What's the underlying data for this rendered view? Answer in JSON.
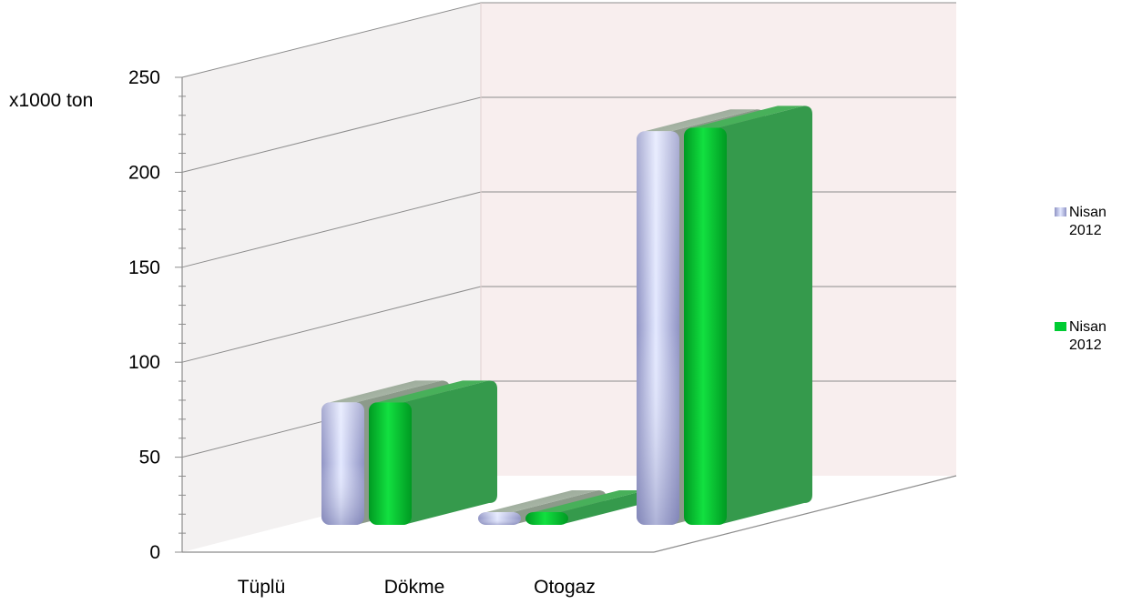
{
  "chart_data": {
    "type": "bar",
    "ylabel": "x1000 ton",
    "categories": [
      "Tüplü",
      "Dökme",
      "Otogaz"
    ],
    "ylim": [
      0,
      250
    ],
    "yticks": [
      0,
      50,
      100,
      150,
      200,
      250
    ],
    "grid": true,
    "legend_position": "right",
    "series": [
      {
        "name": "Nisan 2012",
        "values": [
          70,
          2,
          225
        ],
        "color": "#c5cdf2"
      },
      {
        "name": "Nisan 2012",
        "values": [
          70,
          1,
          227
        ],
        "color": "#00cc33"
      }
    ]
  }
}
